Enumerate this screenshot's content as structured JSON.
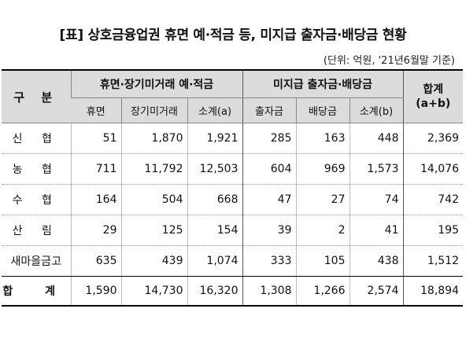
{
  "title": "[표] 상호금융업권 휴면 예·적금 등, 미지급 출자금·배당금 현황",
  "unit_note": "(단위: 억원, '21년6월말 기준)",
  "header": {
    "category": "구 분",
    "group_dormant": "휴면·장기미거래 예·적금",
    "group_unpaid": "미지급 출자금·배당금",
    "total_line1": "합계",
    "total_line2": "(a+b)",
    "sub_dormant": "휴면",
    "sub_longterm": "장기미거래",
    "sub_subtotal_a": "소계(a)",
    "sub_investment": "출자금",
    "sub_dividend": "배당금",
    "sub_subtotal_b": "소계(b)"
  },
  "rows": [
    {
      "label": "신 협",
      "dormant": "51",
      "longterm": "1,870",
      "subtotal_a": "1,921",
      "investment": "285",
      "dividend": "163",
      "subtotal_b": "448",
      "total": "2,369"
    },
    {
      "label": "농 협",
      "dormant": "711",
      "longterm": "11,792",
      "subtotal_a": "12,503",
      "investment": "604",
      "dividend": "969",
      "subtotal_b": "1,573",
      "total": "14,076"
    },
    {
      "label": "수 협",
      "dormant": "164",
      "longterm": "504",
      "subtotal_a": "668",
      "investment": "47",
      "dividend": "27",
      "subtotal_b": "74",
      "total": "742"
    },
    {
      "label": "산 림",
      "dormant": "29",
      "longterm": "125",
      "subtotal_a": "154",
      "investment": "39",
      "dividend": "2",
      "subtotal_b": "41",
      "total": "195"
    },
    {
      "label": "새마을금고",
      "dormant": "635",
      "longterm": "439",
      "subtotal_a": "1,074",
      "investment": "333",
      "dividend": "105",
      "subtotal_b": "438",
      "total": "1,512"
    }
  ],
  "sum": {
    "label": "합 계",
    "dormant": "1,590",
    "longterm": "14,730",
    "subtotal_a": "16,320",
    "investment": "1,308",
    "dividend": "1,266",
    "subtotal_b": "2,574",
    "total": "18,894"
  }
}
